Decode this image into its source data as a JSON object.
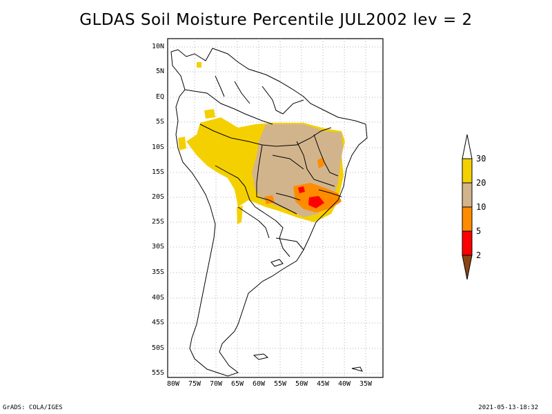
{
  "title": "GLDAS Soil Moisture Percentile JUL2002 lev = 2",
  "lat_ticks": [
    "10N",
    "5N",
    "EQ",
    "5S",
    "10S",
    "15S",
    "20S",
    "25S",
    "30S",
    "35S",
    "40S",
    "45S",
    "50S",
    "55S"
  ],
  "lon_ticks": [
    "80W",
    "75W",
    "70W",
    "65W",
    "60W",
    "55W",
    "50W",
    "45W",
    "40W",
    "35W"
  ],
  "colorbar": {
    "labels": [
      "30",
      "20",
      "10",
      "5",
      "2"
    ],
    "colors": {
      "above_30": "#ffffff",
      "20_30": "#f5d000",
      "10_20": "#d2b48c",
      "5_10": "#ff8c00",
      "2_5": "#ff0000",
      "below_2": "#8b4513"
    }
  },
  "credit_left": "GrADS: COLA/IGES",
  "credit_right": "2021-05-13-18:32"
}
